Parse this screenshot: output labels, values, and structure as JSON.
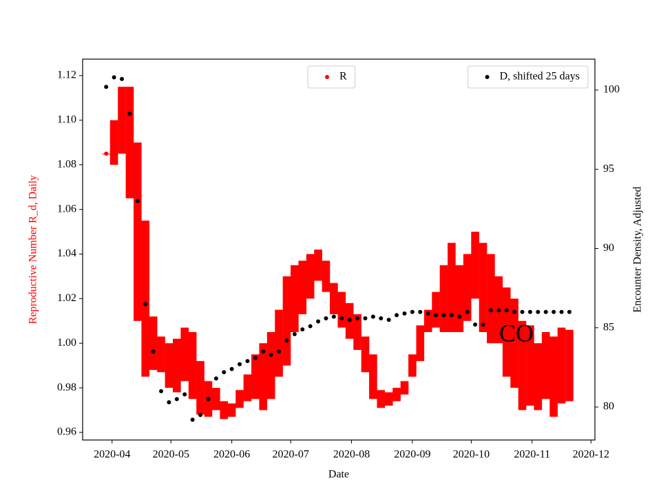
{
  "chart_data": {
    "type": "errorbar-dual",
    "xlabel": "Date",
    "ylabel": "Reproductive Number R_d, Daily",
    "y2label": "Encounter Density, Adjusted",
    "annotation": "CO",
    "ylabel_color": "#ff0000",
    "x": [
      "2020-03-29",
      "2020-04-02",
      "2020-04-06",
      "2020-04-10",
      "2020-04-14",
      "2020-04-18",
      "2020-04-22",
      "2020-04-26",
      "2020-04-30",
      "2020-05-04",
      "2020-05-08",
      "2020-05-12",
      "2020-05-16",
      "2020-05-20",
      "2020-05-24",
      "2020-05-28",
      "2020-06-01",
      "2020-06-05",
      "2020-06-09",
      "2020-06-13",
      "2020-06-17",
      "2020-06-21",
      "2020-06-25",
      "2020-06-29",
      "2020-07-03",
      "2020-07-07",
      "2020-07-11",
      "2020-07-15",
      "2020-07-19",
      "2020-07-23",
      "2020-07-27",
      "2020-07-31",
      "2020-08-04",
      "2020-08-08",
      "2020-08-12",
      "2020-08-16",
      "2020-08-20",
      "2020-08-24",
      "2020-08-28",
      "2020-09-01",
      "2020-09-05",
      "2020-09-09",
      "2020-09-13",
      "2020-09-17",
      "2020-09-21",
      "2020-09-25",
      "2020-09-29",
      "2020-10-03",
      "2020-10-07",
      "2020-10-11",
      "2020-10-15",
      "2020-10-19",
      "2020-10-23",
      "2020-10-27",
      "2020-10-31",
      "2020-11-04",
      "2020-11-08",
      "2020-11-12",
      "2020-11-16",
      "2020-11-20"
    ],
    "series": [
      {
        "name": "R",
        "color": "#ff0000",
        "axis": "y",
        "legend": "upper center",
        "values": [
          1.085,
          1.09,
          1.1,
          1.09,
          1.05,
          1.02,
          1.0,
          0.995,
          0.99,
          0.99,
          0.995,
          0.99,
          0.98,
          0.975,
          0.975,
          0.97,
          0.97,
          0.975,
          0.98,
          0.985,
          0.985,
          0.99,
          1.0,
          1.01,
          1.02,
          1.025,
          1.03,
          1.035,
          1.03,
          1.02,
          1.015,
          1.01,
          1.005,
          0.995,
          0.985,
          0.975,
          0.975,
          0.977,
          0.98,
          0.99,
          1.0,
          1.01,
          1.015,
          1.02,
          1.025,
          1.02,
          1.025,
          1.035,
          1.025,
          1.02,
          1.015,
          1.005,
          1.0,
          0.99,
          0.99,
          0.985,
          0.99,
          0.985,
          0.99,
          0.99
        ],
        "errors": [
          0,
          0.01,
          0.015,
          0.025,
          0.04,
          0.035,
          0.012,
          0.008,
          0.01,
          0.012,
          0.012,
          0.015,
          0.012,
          0.008,
          0.005,
          0.004,
          0.003,
          0.004,
          0.006,
          0.01,
          0.015,
          0.015,
          0.015,
          0.02,
          0.015,
          0.012,
          0.01,
          0.007,
          0.007,
          0.007,
          0.008,
          0.008,
          0.008,
          0.008,
          0.01,
          0.004,
          0.003,
          0.003,
          0.003,
          0.005,
          0.008,
          0.005,
          0.008,
          0.015,
          0.02,
          0.015,
          0.015,
          0.015,
          0.02,
          0.02,
          0.015,
          0.02,
          0.02,
          0.02,
          0.018,
          0.015,
          0.015,
          0.018,
          0.017,
          0.016
        ]
      },
      {
        "name": "D, shifted 25 days",
        "color": "#000000",
        "axis": "y2",
        "legend": "upper right",
        "values": [
          100.2,
          100.8,
          100.7,
          98.5,
          93,
          86.5,
          83.5,
          81,
          80.3,
          80.5,
          80.8,
          79.2,
          79.5,
          80.5,
          81.8,
          82.2,
          82.4,
          82.7,
          82.9,
          83.1,
          83.5,
          83.3,
          83.5,
          84.2,
          84.6,
          84.9,
          85.1,
          85.4,
          85.6,
          85.7,
          85.6,
          85.5,
          85.6,
          85.6,
          85.7,
          85.6,
          85.5,
          85.8,
          85.9,
          86,
          86,
          85.9,
          85.8,
          85.8,
          85.8,
          85.7,
          86,
          85.2,
          85.2,
          86.1,
          86.1,
          86.1,
          86,
          86,
          86,
          86,
          86,
          86,
          86,
          86
        ]
      }
    ],
    "xlim": [
      "2020-03-17",
      "2020-12-03"
    ],
    "xticks": [
      {
        "value": "2020-04-01",
        "label": "2020-04"
      },
      {
        "value": "2020-05-01",
        "label": "2020-05"
      },
      {
        "value": "2020-06-01",
        "label": "2020-06"
      },
      {
        "value": "2020-07-01",
        "label": "2020-07"
      },
      {
        "value": "2020-08-01",
        "label": "2020-08"
      },
      {
        "value": "2020-09-01",
        "label": "2020-09"
      },
      {
        "value": "2020-10-01",
        "label": "2020-10"
      },
      {
        "value": "2020-11-01",
        "label": "2020-11"
      },
      {
        "value": "2020-12-01",
        "label": "2020-12"
      }
    ],
    "ylim": [
      0.9566,
      1.1274
    ],
    "yticks": [
      0.96,
      0.98,
      {
        "value": 1,
        "label": "1.00"
      },
      1.02,
      1.04,
      1.06,
      1.08,
      {
        "value": 1.1,
        "label": "1.10"
      },
      1.12
    ],
    "y2lim": [
      77.92,
      101.95
    ],
    "y2ticks": [
      80,
      85,
      90,
      95,
      100
    ]
  }
}
